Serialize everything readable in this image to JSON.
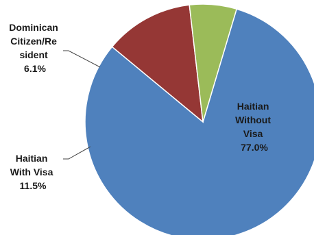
{
  "chart_data": {
    "type": "pie",
    "slices": [
      {
        "label": "Haitian Without Visa",
        "value": 77.0,
        "display_value": "77.0%",
        "color": "#4f81bd"
      },
      {
        "label": "Haitian With Visa",
        "value": 11.5,
        "display_value": "11.5%",
        "color": "#953735"
      },
      {
        "label": "Dominican Citizen/Resident",
        "value": 6.1,
        "display_value": "6.1%",
        "color": "#9bbb59"
      }
    ],
    "labels": {
      "haitian_without_visa": [
        "Haitian",
        "Without",
        "Visa",
        "77.0%"
      ],
      "haitian_with_visa": [
        "Haitian",
        "With Visa",
        "11.5%"
      ],
      "dominican_citizen_resident": [
        "Dominican",
        "Citizen/Re",
        "sident",
        "6.1%"
      ]
    },
    "legend": "none"
  }
}
